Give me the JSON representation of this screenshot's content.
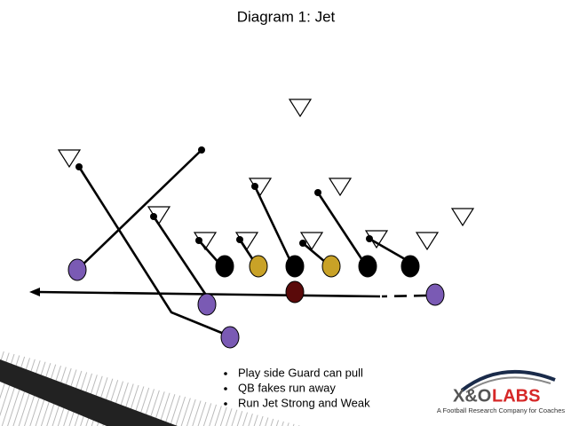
{
  "title": "Diagram 1: Jet",
  "bullets": [
    "Play side Guard can pull",
    "QB fakes run away",
    "Run Jet Strong and Weak"
  ],
  "logo": {
    "mark": "X&O",
    "word": "LABS",
    "tagline": "A Football Research Company for Coaches"
  }
}
